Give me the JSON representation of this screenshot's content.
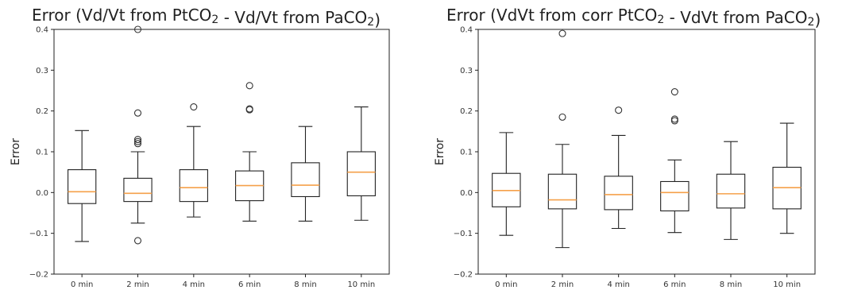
{
  "chart_data": [
    {
      "type": "box",
      "title": "Error (Vd/Vt from PtCO2 - Vd/Vt from PaCO2)",
      "xlabel": "",
      "ylabel": "Error",
      "ylim": [
        -0.2,
        0.4
      ],
      "yticks": [
        "−0.2",
        "−0.1",
        "0.0",
        "0.1",
        "0.2",
        "0.3",
        "0.4"
      ],
      "categories": [
        "0 min",
        "2 min",
        "4 min",
        "6 min",
        "8 min",
        "10 min"
      ],
      "boxes": [
        {
          "whislo": -0.12,
          "q1": -0.027,
          "med": 0.002,
          "q3": 0.056,
          "whishi": 0.152,
          "fliers": []
        },
        {
          "whislo": -0.075,
          "q1": -0.022,
          "med": -0.002,
          "q3": 0.035,
          "whishi": 0.1,
          "fliers": [
            0.4,
            0.195,
            0.13,
            0.125,
            0.12,
            -0.118
          ]
        },
        {
          "whislo": -0.06,
          "q1": -0.022,
          "med": 0.012,
          "q3": 0.056,
          "whishi": 0.162,
          "fliers": [
            0.21
          ]
        },
        {
          "whislo": -0.07,
          "q1": -0.02,
          "med": 0.017,
          "q3": 0.053,
          "whishi": 0.1,
          "fliers": [
            0.262,
            0.205,
            0.203
          ]
        },
        {
          "whislo": -0.07,
          "q1": -0.01,
          "med": 0.018,
          "q3": 0.073,
          "whishi": 0.162,
          "fliers": []
        },
        {
          "whislo": -0.068,
          "q1": -0.008,
          "med": 0.05,
          "q3": 0.1,
          "whishi": 0.21,
          "fliers": []
        }
      ]
    },
    {
      "type": "box",
      "title": "Error (VdVt from corr PtCO2 - VdVt from PaCO2)",
      "xlabel": "",
      "ylabel": "Error",
      "ylim": [
        -0.2,
        0.4
      ],
      "yticks": [
        "−0.2",
        "−0.1",
        "0.0",
        "0.1",
        "0.2",
        "0.3",
        "0.4"
      ],
      "categories": [
        "0 min",
        "2 min",
        "4 min",
        "6 min",
        "8 min",
        "10 min"
      ],
      "boxes": [
        {
          "whislo": -0.105,
          "q1": -0.035,
          "med": 0.005,
          "q3": 0.047,
          "whishi": 0.147,
          "fliers": []
        },
        {
          "whislo": -0.135,
          "q1": -0.04,
          "med": -0.018,
          "q3": 0.045,
          "whishi": 0.118,
          "fliers": [
            0.39,
            0.185
          ]
        },
        {
          "whislo": -0.088,
          "q1": -0.042,
          "med": -0.005,
          "q3": 0.04,
          "whishi": 0.14,
          "fliers": [
            0.202
          ]
        },
        {
          "whislo": -0.098,
          "q1": -0.045,
          "med": 0.0,
          "q3": 0.027,
          "whishi": 0.08,
          "fliers": [
            0.247,
            0.18,
            0.176
          ]
        },
        {
          "whislo": -0.115,
          "q1": -0.038,
          "med": -0.003,
          "q3": 0.045,
          "whishi": 0.125,
          "fliers": []
        },
        {
          "whislo": -0.1,
          "q1": -0.04,
          "med": 0.012,
          "q3": 0.062,
          "whishi": 0.17,
          "fliers": []
        }
      ]
    }
  ]
}
